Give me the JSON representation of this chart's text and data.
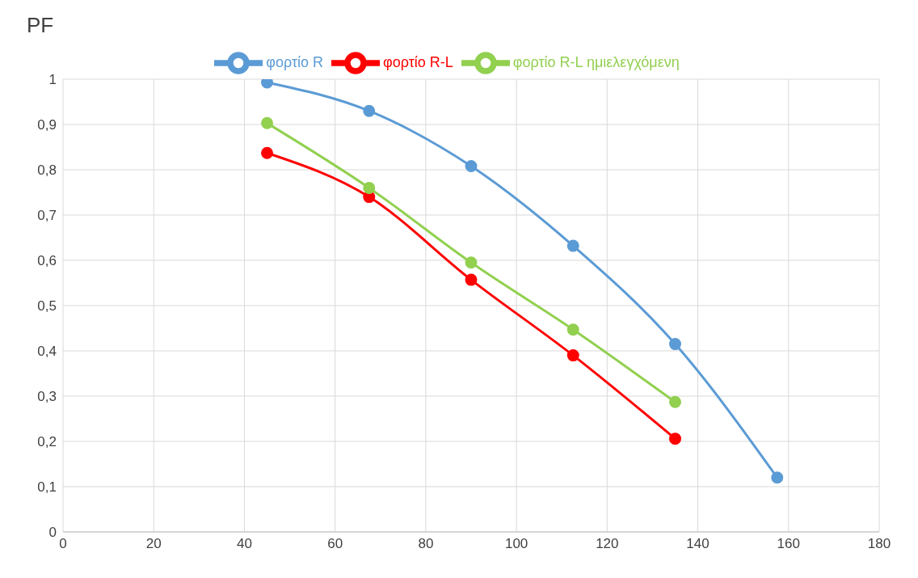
{
  "chart_data": {
    "type": "line",
    "ylabel": "PF",
    "x": [
      45,
      67.5,
      90,
      112.5,
      135,
      157.5
    ],
    "series": [
      {
        "name": "φορτίο R",
        "color": "#5b9bd5",
        "values": [
          0.993,
          0.93,
          0.808,
          0.632,
          0.415,
          0.12
        ]
      },
      {
        "name": "φορτίο R-L",
        "color": "#ff0000",
        "values": [
          0.837,
          0.74,
          0.557,
          0.39,
          0.206,
          null
        ]
      },
      {
        "name": "φορτίο R-L ημιελεγχόμενη",
        "color": "#92d050",
        "values": [
          0.903,
          0.76,
          0.595,
          0.447,
          0.287,
          null
        ]
      }
    ],
    "xlim": [
      0,
      180
    ],
    "xticks": [
      0,
      20,
      40,
      60,
      80,
      100,
      120,
      140,
      160,
      180
    ],
    "ylim": [
      0,
      1
    ],
    "yticks": [
      0,
      {
        "value": 0.1,
        "label": "0,1"
      },
      {
        "value": 0.2,
        "label": "0,2"
      },
      {
        "value": 0.3,
        "label": "0,3"
      },
      {
        "value": 0.4,
        "label": "0,4"
      },
      {
        "value": 0.5,
        "label": "0,5"
      },
      {
        "value": 0.6,
        "label": "0,6"
      },
      {
        "value": 0.7,
        "label": "0,7"
      },
      {
        "value": 0.8,
        "label": "0,8"
      },
      {
        "value": 0.9,
        "label": "0,9"
      },
      1
    ],
    "grid": true,
    "legend": "top",
    "marker": "circle",
    "line_style": "solid"
  }
}
